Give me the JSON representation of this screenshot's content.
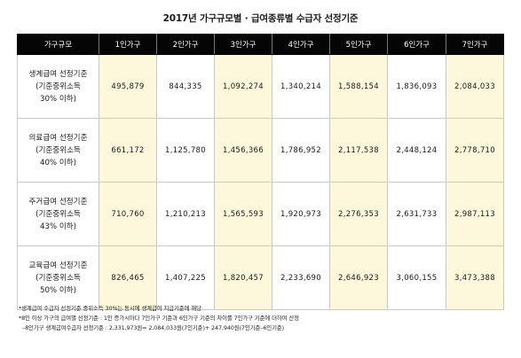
{
  "title": "2017년 가구규모별 · 급여종류별 수급자 선정기준",
  "table": {
    "headers": [
      "가구규모",
      "1인가구",
      "2인가구",
      "3인가구",
      "4인가구",
      "5인가구",
      "6인가구",
      "7인가구"
    ],
    "rows": [
      {
        "label": [
          "생계급여 선정기준",
          "(기준중위소득",
          "30% 이하)"
        ],
        "values": [
          "495,879",
          "844,335",
          "1,092,274",
          "1,340,214",
          "1,588,154",
          "1,836,093",
          "2,084,033"
        ]
      },
      {
        "label": [
          "의료급여 선정기준",
          "(기준중위소득",
          "40% 이하)"
        ],
        "values": [
          "661,172",
          "1,125,780",
          "1,456,366",
          "1,786,952",
          "2,117,538",
          "2,448,124",
          "2,778,710"
        ]
      },
      {
        "label": [
          "주거급여 선정기준",
          "(기준중위소득",
          "43% 이하)"
        ],
        "values": [
          "710,760",
          "1,210,213",
          "1,565,593",
          "1,920,973",
          "2,276,353",
          "2,631,733",
          "2,987,113"
        ]
      },
      {
        "label": [
          "교육급여 선정기준",
          "(기준중위소득",
          "50% 이하)"
        ],
        "values": [
          "826,465",
          "1,407,225",
          "1,820,457",
          "2,233,690",
          "2,646,923",
          "3,060,155",
          "3,473,388"
        ]
      }
    ]
  },
  "notes": [
    "*생계급여 수급자 선정기준 중위소득 30%는 동시에 생계급여 지급기준에 해당",
    "*8인 이상 가구의 급여별 선정기준 : 1인 증가시마다 7인가구 기준과 6인가구 기준의 차이를 7인가구 기준에 더하여 산정",
    "–8인가구 생계급여수급자 선정기준 : 2,331,973원= 2,084,033원(7인기준)+  247,940원(7인기준–6인기준)"
  ],
  "colors": {
    "header_bg": "#050505",
    "highlight_column": "#fdf8dc",
    "grid": "#c9c9c9"
  }
}
